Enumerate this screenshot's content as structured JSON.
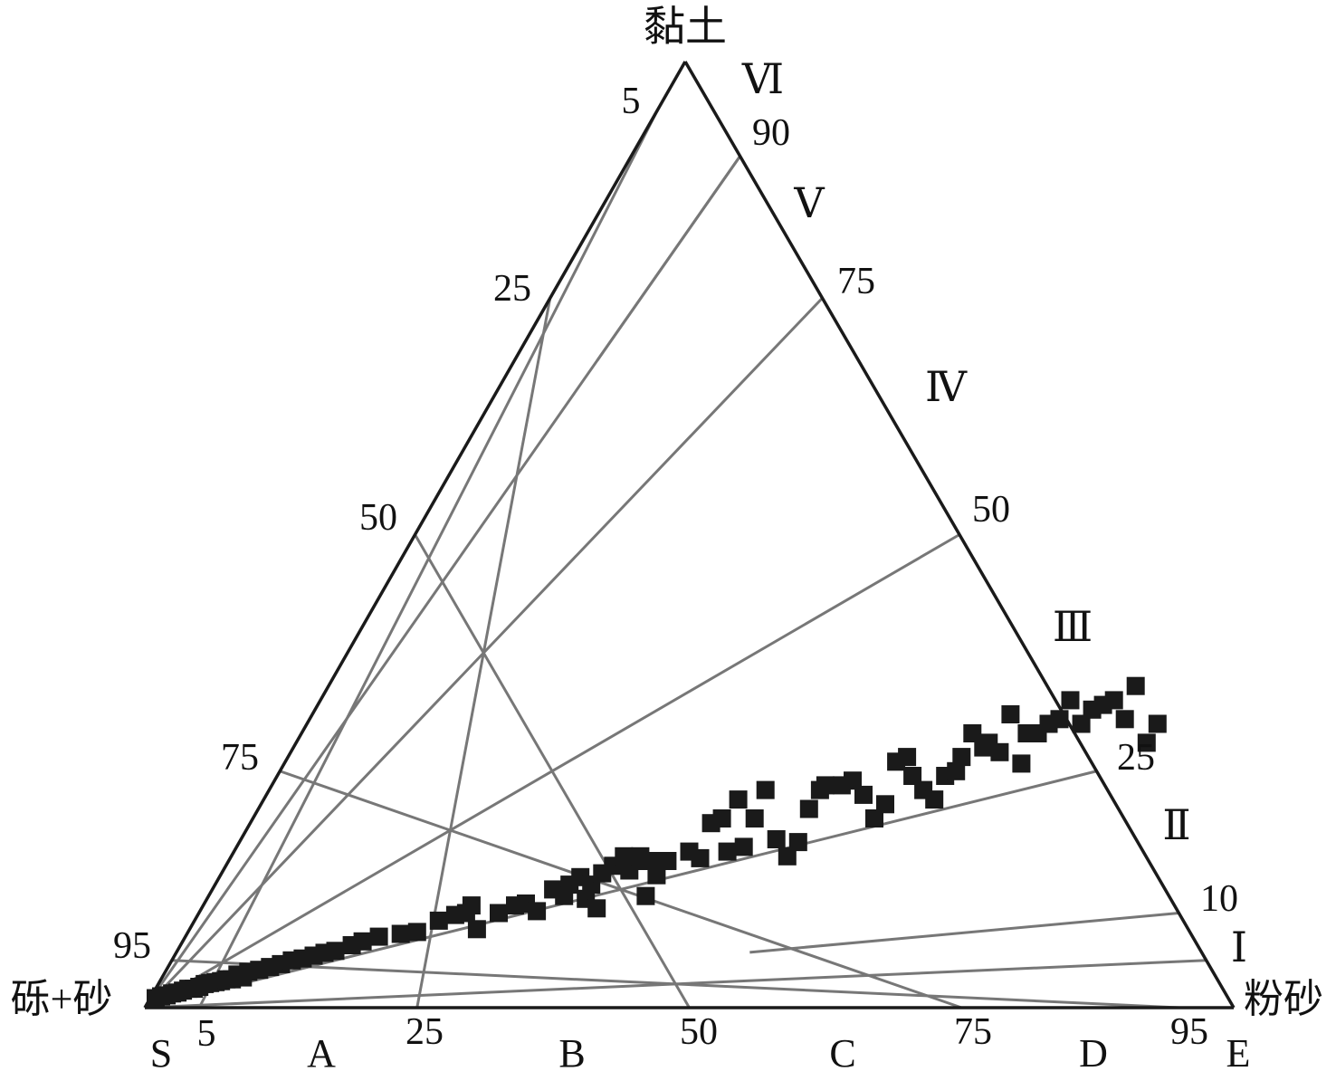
{
  "chart_data": {
    "type": "ternary-scatter",
    "vertex_labels": {
      "top": "黏土",
      "left": "砾+砂",
      "right": "粉砂"
    },
    "left_edge_ticks": [
      "5",
      "25",
      "50",
      "75",
      "95"
    ],
    "right_edge_ticks": [
      "90",
      "75",
      "50",
      "25",
      "10"
    ],
    "bottom_edge_ticks": [
      "5",
      "25",
      "50",
      "75",
      "95"
    ],
    "bottom_zone_labels": [
      "S",
      "A",
      "B",
      "C",
      "D",
      "E"
    ],
    "right_zone_labels": [
      "Ⅰ",
      "Ⅱ",
      "Ⅲ",
      "Ⅳ",
      "Ⅴ",
      "Ⅵ"
    ],
    "grid": true,
    "colors": {
      "axes": "#1a1a1a",
      "grid": "#777777",
      "points": "#1a1a1a"
    },
    "points": [
      [
        0.01,
        0.01
      ],
      [
        0.015,
        0.012
      ],
      [
        0.02,
        0.013
      ],
      [
        0.025,
        0.015
      ],
      [
        0.03,
        0.016
      ],
      [
        0.035,
        0.018
      ],
      [
        0.04,
        0.02
      ],
      [
        0.045,
        0.02
      ],
      [
        0.05,
        0.022
      ],
      [
        0.055,
        0.025
      ],
      [
        0.06,
        0.026
      ],
      [
        0.065,
        0.027
      ],
      [
        0.07,
        0.028
      ],
      [
        0.075,
        0.03
      ],
      [
        0.08,
        0.03
      ],
      [
        0.085,
        0.035
      ],
      [
        0.09,
        0.032
      ],
      [
        0.095,
        0.038
      ],
      [
        0.105,
        0.04
      ],
      [
        0.115,
        0.043
      ],
      [
        0.125,
        0.046
      ],
      [
        0.135,
        0.05
      ],
      [
        0.145,
        0.052
      ],
      [
        0.155,
        0.055
      ],
      [
        0.165,
        0.058
      ],
      [
        0.175,
        0.06
      ],
      [
        0.19,
        0.066
      ],
      [
        0.2,
        0.07
      ],
      [
        0.215,
        0.075
      ],
      [
        0.235,
        0.078
      ],
      [
        0.25,
        0.08
      ],
      [
        0.27,
        0.092
      ],
      [
        0.285,
        0.098
      ],
      [
        0.295,
        0.1
      ],
      [
        0.3,
        0.108
      ],
      [
        0.305,
        0.083
      ],
      [
        0.325,
        0.1
      ],
      [
        0.34,
        0.108
      ],
      [
        0.35,
        0.11
      ],
      [
        0.36,
        0.102
      ],
      [
        0.375,
        0.125
      ],
      [
        0.385,
        0.118
      ],
      [
        0.39,
        0.13
      ],
      [
        0.4,
        0.138
      ],
      [
        0.405,
        0.115
      ],
      [
        0.41,
        0.13
      ],
      [
        0.415,
        0.105
      ],
      [
        0.42,
        0.142
      ],
      [
        0.43,
        0.15
      ],
      [
        0.44,
        0.16
      ],
      [
        0.445,
        0.145
      ],
      [
        0.45,
        0.155
      ],
      [
        0.455,
        0.16
      ],
      [
        0.46,
        0.118
      ],
      [
        0.465,
        0.155
      ],
      [
        0.47,
        0.14
      ],
      [
        0.48,
        0.155
      ],
      [
        0.5,
        0.165
      ],
      [
        0.51,
        0.158
      ],
      [
        0.52,
        0.195
      ],
      [
        0.53,
        0.2
      ],
      [
        0.535,
        0.165
      ],
      [
        0.545,
        0.22
      ],
      [
        0.55,
        0.17
      ],
      [
        0.56,
        0.2
      ],
      [
        0.57,
        0.23
      ],
      [
        0.58,
        0.178
      ],
      [
        0.59,
        0.16
      ],
      [
        0.6,
        0.175
      ],
      [
        0.61,
        0.21
      ],
      [
        0.62,
        0.23
      ],
      [
        0.625,
        0.235
      ],
      [
        0.64,
        0.235
      ],
      [
        0.65,
        0.24
      ],
      [
        0.66,
        0.225
      ],
      [
        0.67,
        0.2
      ],
      [
        0.68,
        0.215
      ],
      [
        0.69,
        0.26
      ],
      [
        0.7,
        0.265
      ],
      [
        0.705,
        0.245
      ],
      [
        0.715,
        0.23
      ],
      [
        0.725,
        0.22
      ],
      [
        0.735,
        0.245
      ],
      [
        0.745,
        0.25
      ],
      [
        0.75,
        0.265
      ],
      [
        0.76,
        0.29
      ],
      [
        0.77,
        0.275
      ],
      [
        0.775,
        0.28
      ],
      [
        0.785,
        0.27
      ],
      [
        0.795,
        0.31
      ],
      [
        0.805,
        0.258
      ],
      [
        0.81,
        0.29
      ],
      [
        0.82,
        0.29
      ],
      [
        0.83,
        0.3
      ],
      [
        0.84,
        0.305
      ],
      [
        0.85,
        0.325
      ],
      [
        0.86,
        0.3
      ],
      [
        0.87,
        0.315
      ],
      [
        0.88,
        0.32
      ],
      [
        0.89,
        0.325
      ],
      [
        0.9,
        0.305
      ],
      [
        0.91,
        0.34
      ],
      [
        0.92,
        0.28
      ],
      [
        0.93,
        0.3
      ]
    ]
  }
}
